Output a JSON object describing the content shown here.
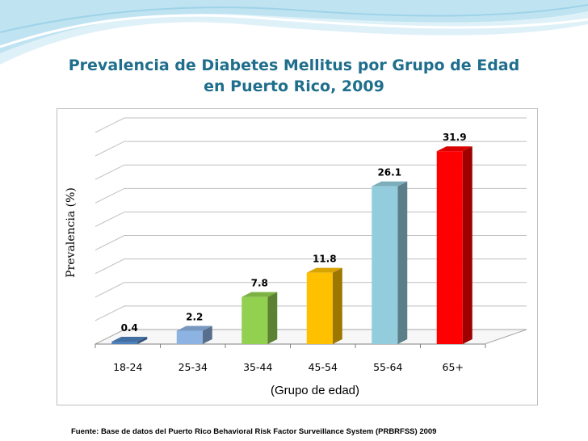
{
  "title": {
    "line1": "Prevalencia de Diabetes Mellitus por Grupo de Edad",
    "line2": "en Puerto Rico, 2009"
  },
  "source": "Fuente: Base de datos del  Puerto Rico Behavioral Risk Factor Surveillance System (PRBRFSS) 2009",
  "colors": {
    "title": "#1f6e8c",
    "wave_light": "#cfe9f3",
    "wave_accent": "#7cc3de"
  },
  "chart_data": {
    "type": "bar",
    "title": "Prevalencia de Diabetes Mellitus por Grupo de Edad en Puerto Rico, 2009",
    "xlabel": "(Grupo de edad)",
    "ylabel": "Prevalencia (%)",
    "categories": [
      "18-24",
      "25-34",
      "35-44",
      "45-54",
      "55-64",
      "65+"
    ],
    "values": [
      0.4,
      2.2,
      7.8,
      11.8,
      26.1,
      31.9
    ],
    "value_labels": [
      "0.4",
      "2.2",
      "7.8",
      "11.8",
      "26.1",
      "31.9"
    ],
    "bar_colors": [
      "#4f81bd",
      "#8db3e2",
      "#92d050",
      "#ffc000",
      "#93cddd",
      "#ff0000"
    ],
    "style": "3d",
    "grid": true,
    "legend": "none"
  }
}
